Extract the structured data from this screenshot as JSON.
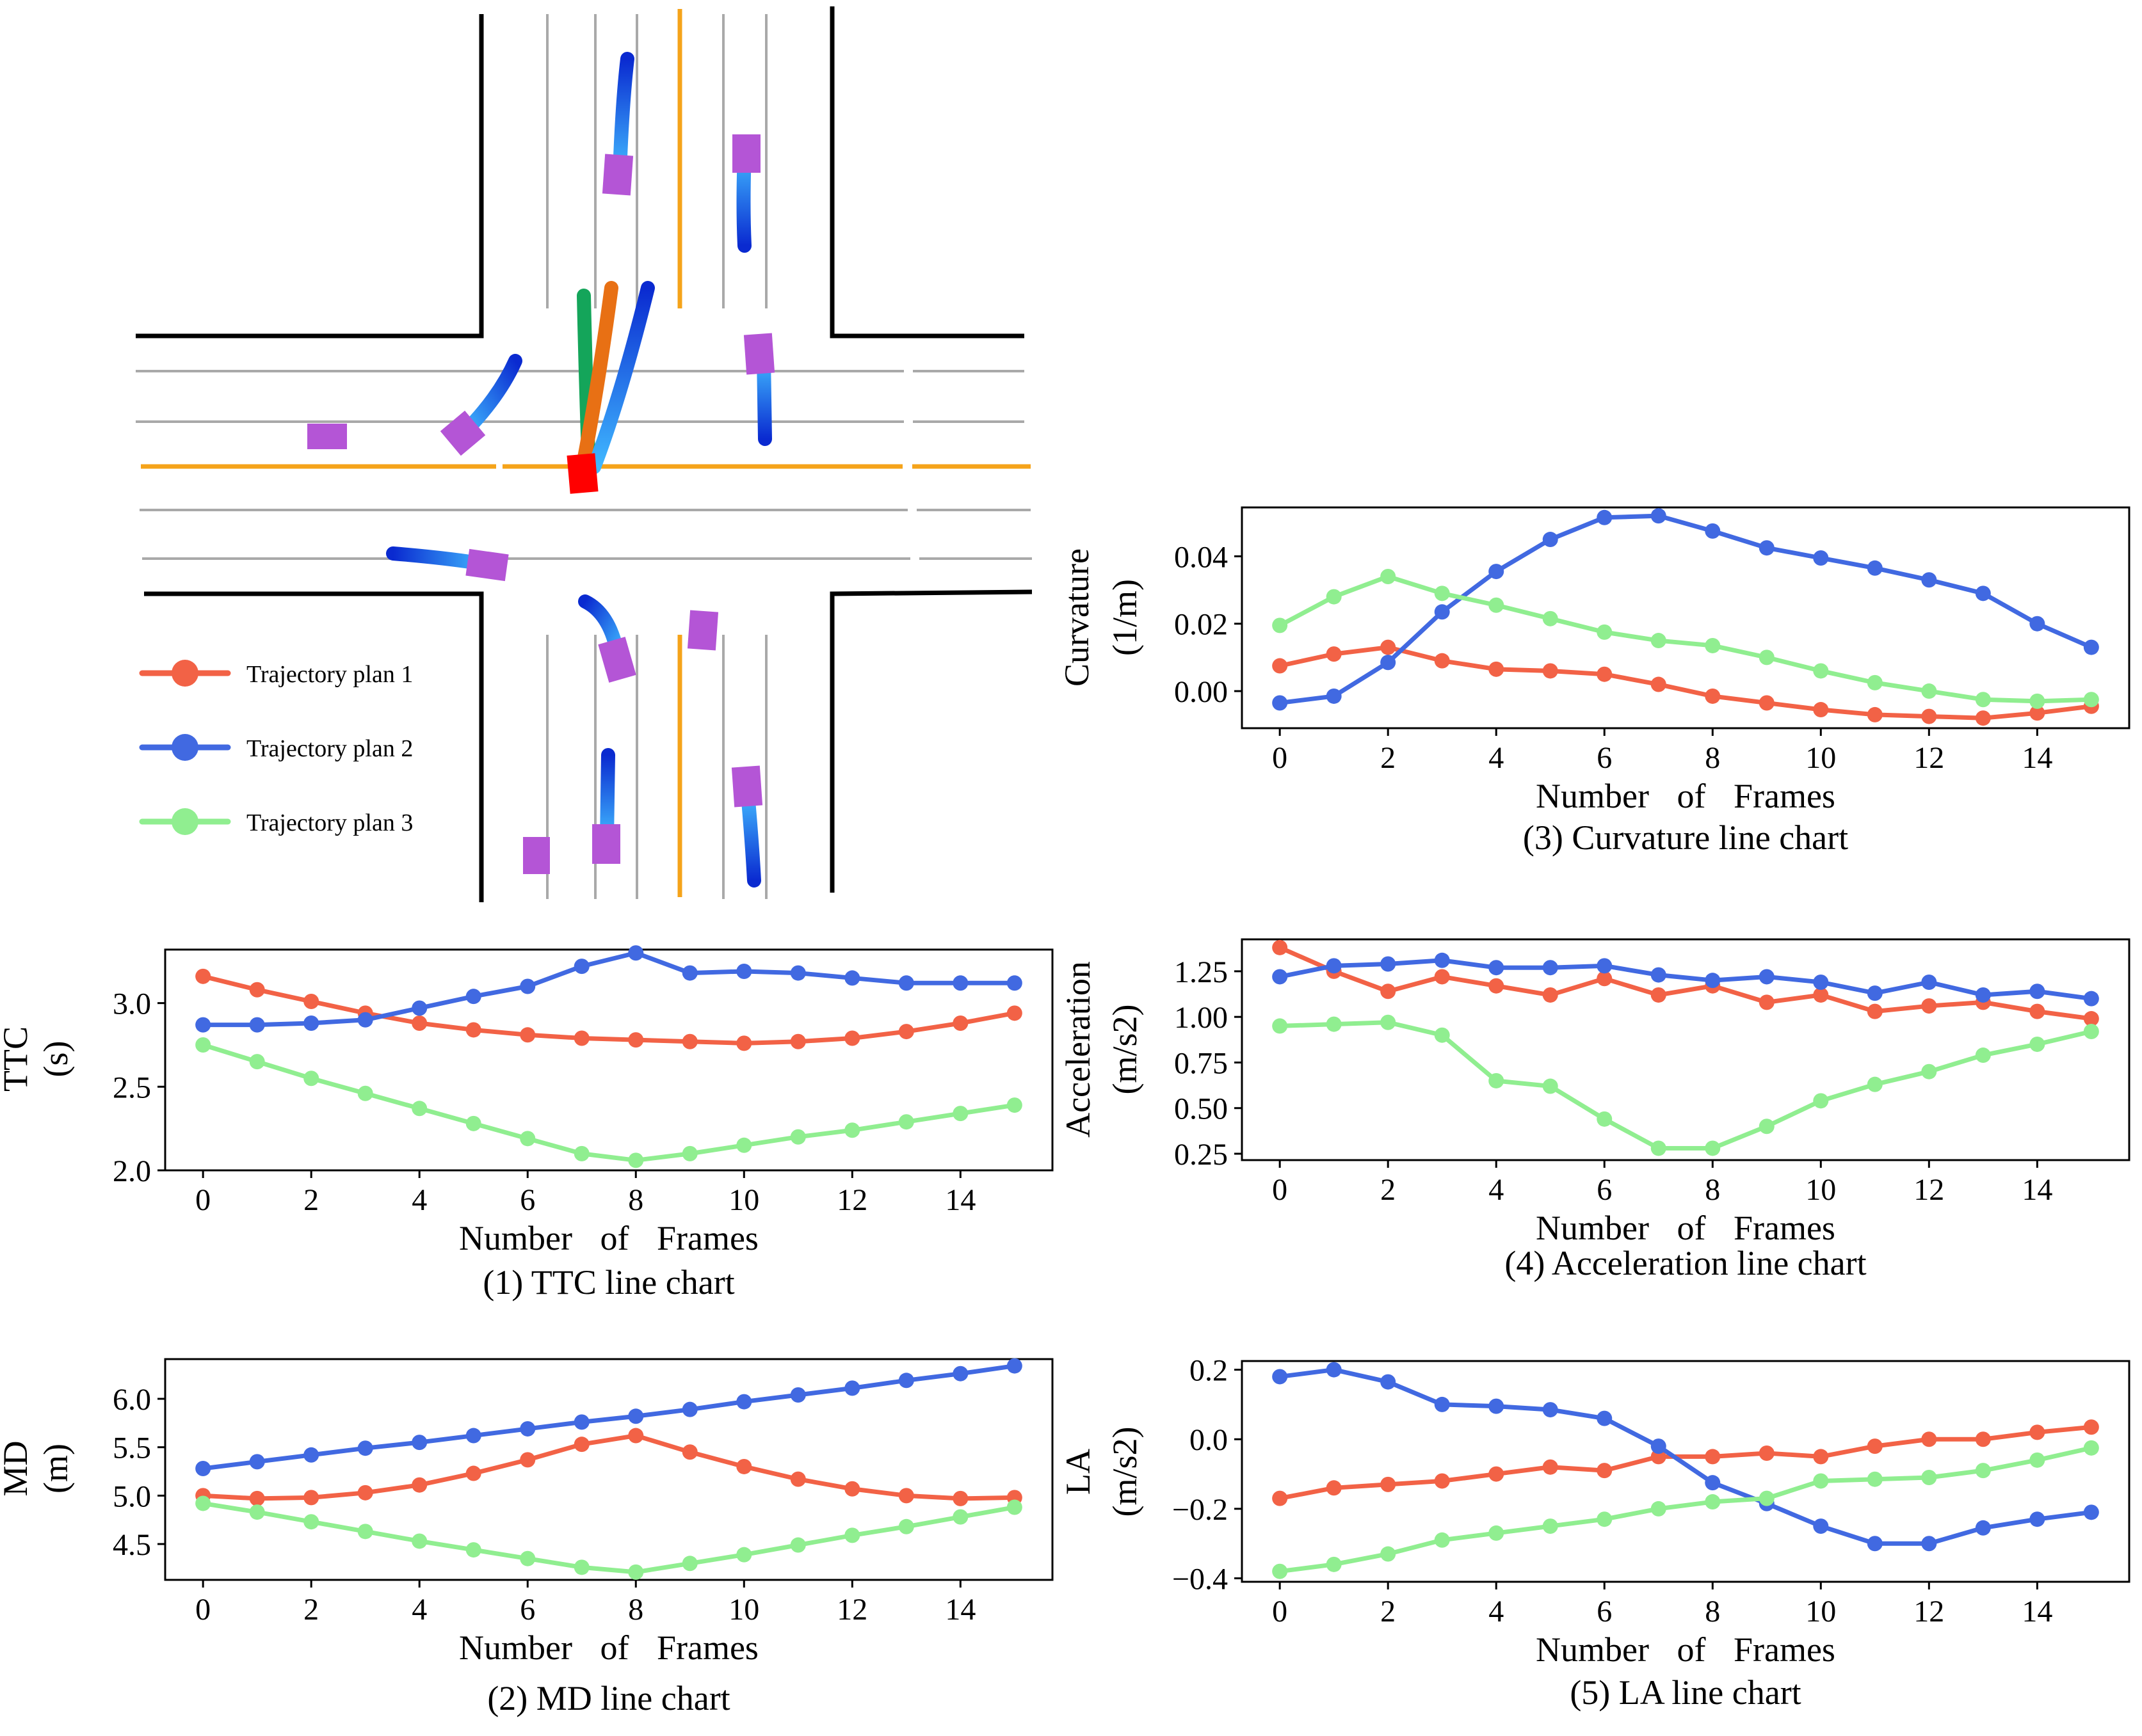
{
  "colors": {
    "plan1": "#f26246",
    "plan2": "#4169e1",
    "plan3": "#90ee90",
    "lane_orange": "#f5a31a",
    "lane_gray": "#a9a9a9",
    "curb": "#000000",
    "ego": "#ff0000",
    "vehicle": "#b455d6",
    "traj_dark": "#0a2ad0",
    "traj_light": "#40b8ff",
    "ego_green": "#14a55a",
    "ego_orange": "#e87014",
    "ego_blue": "#3a9cf5"
  },
  "legend": {
    "items": [
      {
        "label": "Trajectory plan 1",
        "color": "#f26246"
      },
      {
        "label": "Trajectory plan 2",
        "color": "#4169e1"
      },
      {
        "label": "Trajectory plan 3",
        "color": "#90ee90"
      }
    ]
  },
  "chart_data": [
    {
      "id": "ttc",
      "type": "line",
      "caption": "(1) TTC line chart",
      "ylabel": [
        "TTC",
        "(s)"
      ],
      "xlabel": "Number of Frames",
      "xlim": [
        -0.7,
        15.7
      ],
      "ylim": [
        2.0,
        3.32
      ],
      "xticks": [
        0,
        2,
        4,
        6,
        8,
        10,
        12,
        14
      ],
      "yticks": [
        2.0,
        2.5,
        3.0
      ],
      "ytick_labels": [
        "2.0",
        "2.5",
        "3.0"
      ],
      "x": [
        0,
        1,
        2,
        3,
        4,
        5,
        6,
        7,
        8,
        9,
        10,
        11,
        12,
        13,
        14,
        15
      ],
      "series": [
        {
          "name": "Trajectory plan 1",
          "values": [
            3.16,
            3.08,
            3.01,
            2.94,
            2.88,
            2.84,
            2.81,
            2.79,
            2.78,
            2.77,
            2.76,
            2.77,
            2.79,
            2.83,
            2.88,
            2.94
          ]
        },
        {
          "name": "Trajectory plan 2",
          "values": [
            2.87,
            2.87,
            2.88,
            2.9,
            2.97,
            3.04,
            3.1,
            3.22,
            3.3,
            3.18,
            3.19,
            3.18,
            3.15,
            3.12,
            3.12,
            3.12
          ]
        },
        {
          "name": "Trajectory plan 3",
          "values": [
            2.75,
            2.65,
            2.55,
            2.46,
            2.37,
            2.28,
            2.19,
            2.1,
            2.06,
            2.1,
            2.15,
            2.2,
            2.24,
            2.29,
            2.34,
            2.39
          ]
        }
      ]
    },
    {
      "id": "md",
      "type": "line",
      "caption": "(2) MD line chart",
      "ylabel": [
        "MD",
        "(m)"
      ],
      "xlabel": "Number of Frames",
      "xlim": [
        -0.7,
        15.7
      ],
      "ylim": [
        4.13,
        6.41
      ],
      "xticks": [
        0,
        2,
        4,
        6,
        8,
        10,
        12,
        14
      ],
      "yticks": [
        4.5,
        5.0,
        5.5,
        6.0
      ],
      "ytick_labels": [
        "4.5",
        "5.0",
        "5.5",
        "6.0"
      ],
      "x": [
        0,
        1,
        2,
        3,
        4,
        5,
        6,
        7,
        8,
        9,
        10,
        11,
        12,
        13,
        14,
        15
      ],
      "series": [
        {
          "name": "Trajectory plan 1",
          "values": [
            5.0,
            4.97,
            4.98,
            5.03,
            5.11,
            5.23,
            5.37,
            5.53,
            5.62,
            5.45,
            5.3,
            5.17,
            5.07,
            5.0,
            4.97,
            4.98
          ]
        },
        {
          "name": "Trajectory plan 2",
          "values": [
            5.28,
            5.35,
            5.42,
            5.49,
            5.55,
            5.62,
            5.69,
            5.76,
            5.82,
            5.89,
            5.97,
            6.04,
            6.11,
            6.19,
            6.26,
            6.34
          ]
        },
        {
          "name": "Trajectory plan 3",
          "values": [
            4.92,
            4.83,
            4.73,
            4.63,
            4.53,
            4.44,
            4.35,
            4.26,
            4.21,
            4.3,
            4.39,
            4.49,
            4.59,
            4.68,
            4.78,
            4.88
          ]
        }
      ]
    },
    {
      "id": "curvature",
      "type": "line",
      "caption": "(3) Curvature line chart",
      "ylabel": [
        "Curvature",
        "(1/m)"
      ],
      "xlabel": "Number of Frames",
      "xlim": [
        -0.7,
        15.7
      ],
      "ylim": [
        -0.011,
        0.0545
      ],
      "xticks": [
        0,
        2,
        4,
        6,
        8,
        10,
        12,
        14
      ],
      "yticks": [
        0.0,
        0.02,
        0.04
      ],
      "ytick_labels": [
        "0.00",
        "0.02",
        "0.04"
      ],
      "x": [
        0,
        1,
        2,
        3,
        4,
        5,
        6,
        7,
        8,
        9,
        10,
        11,
        12,
        13,
        14,
        15
      ],
      "series": [
        {
          "name": "Trajectory plan 1",
          "values": [
            0.0075,
            0.011,
            0.013,
            0.009,
            0.0065,
            0.006,
            0.005,
            0.002,
            -0.0015,
            -0.0035,
            -0.0055,
            -0.007,
            -0.0075,
            -0.008,
            -0.0065,
            -0.0045
          ]
        },
        {
          "name": "Trajectory plan 2",
          "values": [
            -0.0035,
            -0.0015,
            0.0085,
            0.0235,
            0.0355,
            0.045,
            0.0515,
            0.052,
            0.0475,
            0.0425,
            0.0395,
            0.0365,
            0.033,
            0.029,
            0.02,
            0.013
          ]
        },
        {
          "name": "Trajectory plan 3",
          "values": [
            0.0195,
            0.028,
            0.034,
            0.029,
            0.0255,
            0.0215,
            0.0175,
            0.015,
            0.0135,
            0.01,
            0.006,
            0.0025,
            0.0,
            -0.0025,
            -0.003,
            -0.0025
          ]
        }
      ]
    },
    {
      "id": "acceleration",
      "type": "line",
      "caption": "(4) Acceleration line chart",
      "ylabel": [
        "Acceleration",
        "(m/s2)"
      ],
      "xlabel": "Number of Frames",
      "xlim": [
        -0.7,
        15.7
      ],
      "ylim": [
        0.215,
        1.425
      ],
      "xticks": [
        0,
        2,
        4,
        6,
        8,
        10,
        12,
        14
      ],
      "yticks": [
        0.25,
        0.5,
        0.75,
        1.0,
        1.25
      ],
      "ytick_labels": [
        "0.25",
        "0.50",
        "0.75",
        "1.00",
        "1.25"
      ],
      "x": [
        0,
        1,
        2,
        3,
        4,
        5,
        6,
        7,
        8,
        9,
        10,
        11,
        12,
        13,
        14,
        15
      ],
      "series": [
        {
          "name": "Trajectory plan 1",
          "values": [
            1.38,
            1.25,
            1.14,
            1.22,
            1.17,
            1.12,
            1.21,
            1.12,
            1.17,
            1.08,
            1.12,
            1.03,
            1.06,
            1.08,
            1.03,
            0.99
          ]
        },
        {
          "name": "Trajectory plan 2",
          "values": [
            1.22,
            1.28,
            1.29,
            1.31,
            1.27,
            1.27,
            1.28,
            1.23,
            1.2,
            1.22,
            1.19,
            1.13,
            1.19,
            1.12,
            1.14,
            1.1
          ]
        },
        {
          "name": "Trajectory plan 3",
          "values": [
            0.95,
            0.96,
            0.97,
            0.9,
            0.65,
            0.62,
            0.44,
            0.28,
            0.28,
            0.4,
            0.54,
            0.63,
            0.7,
            0.79,
            0.85,
            0.92
          ]
        }
      ]
    },
    {
      "id": "la",
      "type": "line",
      "caption": "(5) LA line chart",
      "ylabel": [
        "LA",
        "(m/s2)"
      ],
      "xlabel": "Number of Frames",
      "xlim": [
        -0.7,
        15.7
      ],
      "ylim": [
        -0.41,
        0.225
      ],
      "xticks": [
        0,
        2,
        4,
        6,
        8,
        10,
        12,
        14
      ],
      "yticks": [
        -0.4,
        -0.2,
        0.0,
        0.2
      ],
      "ytick_labels": [
        "−0.4",
        "−0.2",
        "0.0",
        "0.2"
      ],
      "x": [
        0,
        1,
        2,
        3,
        4,
        5,
        6,
        7,
        8,
        9,
        10,
        11,
        12,
        13,
        14,
        15
      ],
      "series": [
        {
          "name": "Trajectory plan 1",
          "values": [
            -0.17,
            -0.14,
            -0.13,
            -0.12,
            -0.1,
            -0.08,
            -0.09,
            -0.05,
            -0.05,
            -0.04,
            -0.05,
            -0.02,
            0.0,
            0.0,
            0.02,
            0.035
          ]
        },
        {
          "name": "Trajectory plan 2",
          "values": [
            0.18,
            0.2,
            0.165,
            0.1,
            0.095,
            0.085,
            0.06,
            -0.02,
            -0.125,
            -0.185,
            -0.25,
            -0.3,
            -0.3,
            -0.255,
            -0.23,
            -0.21
          ]
        },
        {
          "name": "Trajectory plan 3",
          "values": [
            -0.38,
            -0.36,
            -0.33,
            -0.29,
            -0.27,
            -0.25,
            -0.23,
            -0.2,
            -0.18,
            -0.17,
            -0.12,
            -0.115,
            -0.11,
            -0.09,
            -0.06,
            -0.025
          ]
        }
      ]
    }
  ]
}
